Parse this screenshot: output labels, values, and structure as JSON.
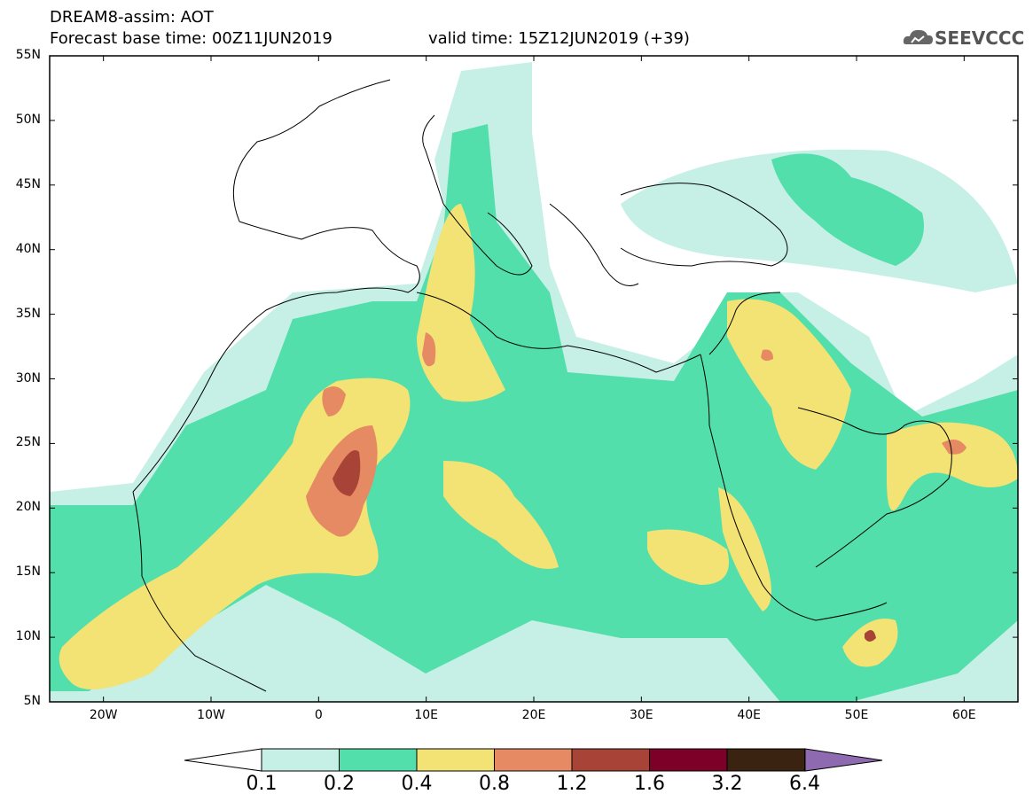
{
  "header": {
    "line1": "DREAM8-assim: AOT",
    "line2": "Forecast base time: 00Z11JUN2019",
    "line3": "valid time: 15Z12JUN2019 (+39)",
    "logo_text": "SEEVCCC"
  },
  "map": {
    "lat_labels": [
      "55N",
      "50N",
      "45N",
      "40N",
      "35N",
      "30N",
      "25N",
      "20N",
      "15N",
      "10N",
      "5N"
    ],
    "lon_labels": [
      "20W",
      "10W",
      "0",
      "10E",
      "20E",
      "30E",
      "40E",
      "50E",
      "60E"
    ],
    "lat_range": [
      5,
      55
    ],
    "lon_range": [
      -25,
      65
    ],
    "field": "AOT"
  },
  "colorbar": {
    "levels": [
      "0.1",
      "0.2",
      "0.4",
      "0.8",
      "1.2",
      "1.6",
      "3.2",
      "6.4"
    ],
    "colors": [
      "#c6f0e6",
      "#52dfab",
      "#f3e274",
      "#e58a62",
      "#a84437",
      "#7d0028",
      "#3a2310",
      "#8e6bb0"
    ]
  }
}
